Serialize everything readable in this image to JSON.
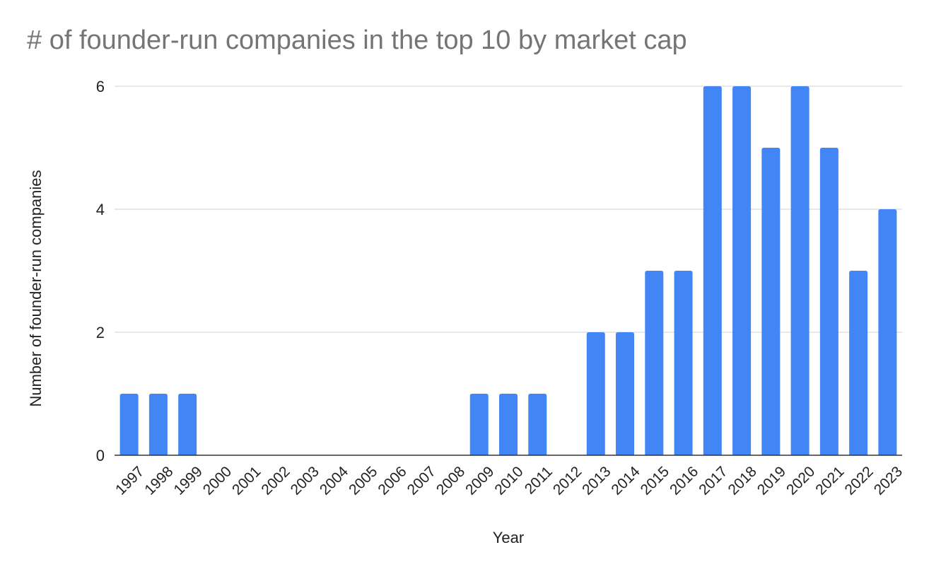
{
  "chart_data": {
    "type": "bar",
    "title": "# of founder-run companies in the top 10 by market cap",
    "xlabel": "Year",
    "ylabel": "Number of founder-run companies",
    "categories": [
      "1997",
      "1998",
      "1999",
      "2000",
      "2001",
      "2002",
      "2003",
      "2004",
      "2005",
      "2006",
      "2007",
      "2008",
      "2009",
      "2010",
      "2011",
      "2012",
      "2013",
      "2014",
      "2015",
      "2016",
      "2017",
      "2018",
      "2019",
      "2020",
      "2021",
      "2022",
      "2023"
    ],
    "values": [
      1,
      1,
      1,
      0,
      0,
      0,
      0,
      0,
      0,
      0,
      0,
      0,
      1,
      1,
      1,
      0,
      2,
      2,
      3,
      3,
      6,
      6,
      5,
      6,
      5,
      3,
      4
    ],
    "ylim": [
      0,
      6
    ],
    "yticks": [
      0,
      2,
      4,
      6
    ],
    "grid": true,
    "legend": "none",
    "colors": {
      "bar": "#4285f4",
      "grid": "#d9d9d9",
      "axis": "#333333",
      "title": "#757575"
    }
  }
}
